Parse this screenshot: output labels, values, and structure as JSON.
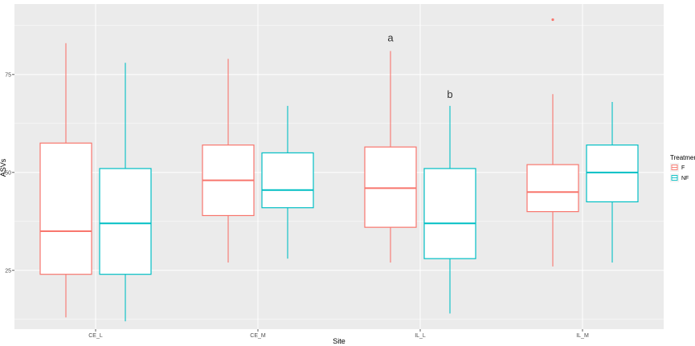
{
  "chart_data": {
    "type": "boxplot",
    "xlabel": "Site",
    "ylabel": "ASVs",
    "categories": [
      "CE_L",
      "CE_M",
      "IL_L",
      "IL_M"
    ],
    "yticks": [
      25,
      50,
      75
    ],
    "ylim": [
      10,
      93
    ],
    "grid": true,
    "legend": {
      "title": "Treatment",
      "placement": "right"
    },
    "series": [
      {
        "name": "F",
        "color": "#F8766D",
        "boxes": [
          {
            "category": "CE_L",
            "min": 13,
            "q1": 24,
            "median": 35,
            "q3": 57.5,
            "max": 83,
            "outliers": []
          },
          {
            "category": "CE_M",
            "min": 27,
            "q1": 39,
            "median": 48,
            "q3": 57,
            "max": 79,
            "outliers": []
          },
          {
            "category": "IL_L",
            "min": 27,
            "q1": 36,
            "median": 46,
            "q3": 56.5,
            "max": 81,
            "outliers": []
          },
          {
            "category": "IL_M",
            "min": 26,
            "q1": 40,
            "median": 45,
            "q3": 52,
            "max": 70,
            "outliers": [
              89
            ]
          }
        ]
      },
      {
        "name": "NF",
        "color": "#00BFC4",
        "boxes": [
          {
            "category": "CE_L",
            "min": 12,
            "q1": 24,
            "median": 37,
            "q3": 51,
            "max": 78,
            "outliers": []
          },
          {
            "category": "CE_M",
            "min": 28,
            "q1": 41,
            "median": 45.5,
            "q3": 55,
            "max": 67,
            "outliers": []
          },
          {
            "category": "IL_L",
            "min": 14,
            "q1": 28,
            "median": 37,
            "q3": 51,
            "max": 67,
            "outliers": []
          },
          {
            "category": "IL_M",
            "min": 27,
            "q1": 42.5,
            "median": 50,
            "q3": 57,
            "max": 68,
            "outliers": []
          }
        ]
      }
    ],
    "annotations": [
      {
        "text": "a",
        "category": "IL_L",
        "series": "F",
        "y": 83.5
      },
      {
        "text": "b",
        "category": "IL_L",
        "series": "NF",
        "y": 69
      }
    ]
  }
}
